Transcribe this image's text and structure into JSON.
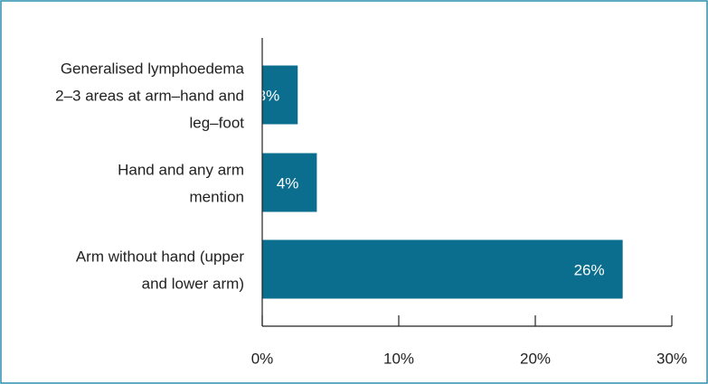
{
  "chart_data": {
    "type": "barh",
    "categories": [
      [
        "Generalised lymphoedema",
        "2–3 areas at arm–hand and",
        "leg–foot"
      ],
      [
        "Hand and any arm",
        "mention"
      ],
      [
        "Arm without hand (upper",
        "and lower arm)"
      ]
    ],
    "values": [
      2.6,
      4.0,
      26.4
    ],
    "value_labels": [
      "3%",
      "4%",
      "26%"
    ],
    "color": "#0b6e8e",
    "xlim": [
      0,
      30
    ],
    "xticks": [
      {
        "value": 0,
        "label": "0%"
      },
      {
        "value": 10,
        "label": "10%"
      },
      {
        "value": 20,
        "label": "20%"
      },
      {
        "value": 30,
        "label": "30%"
      }
    ]
  }
}
